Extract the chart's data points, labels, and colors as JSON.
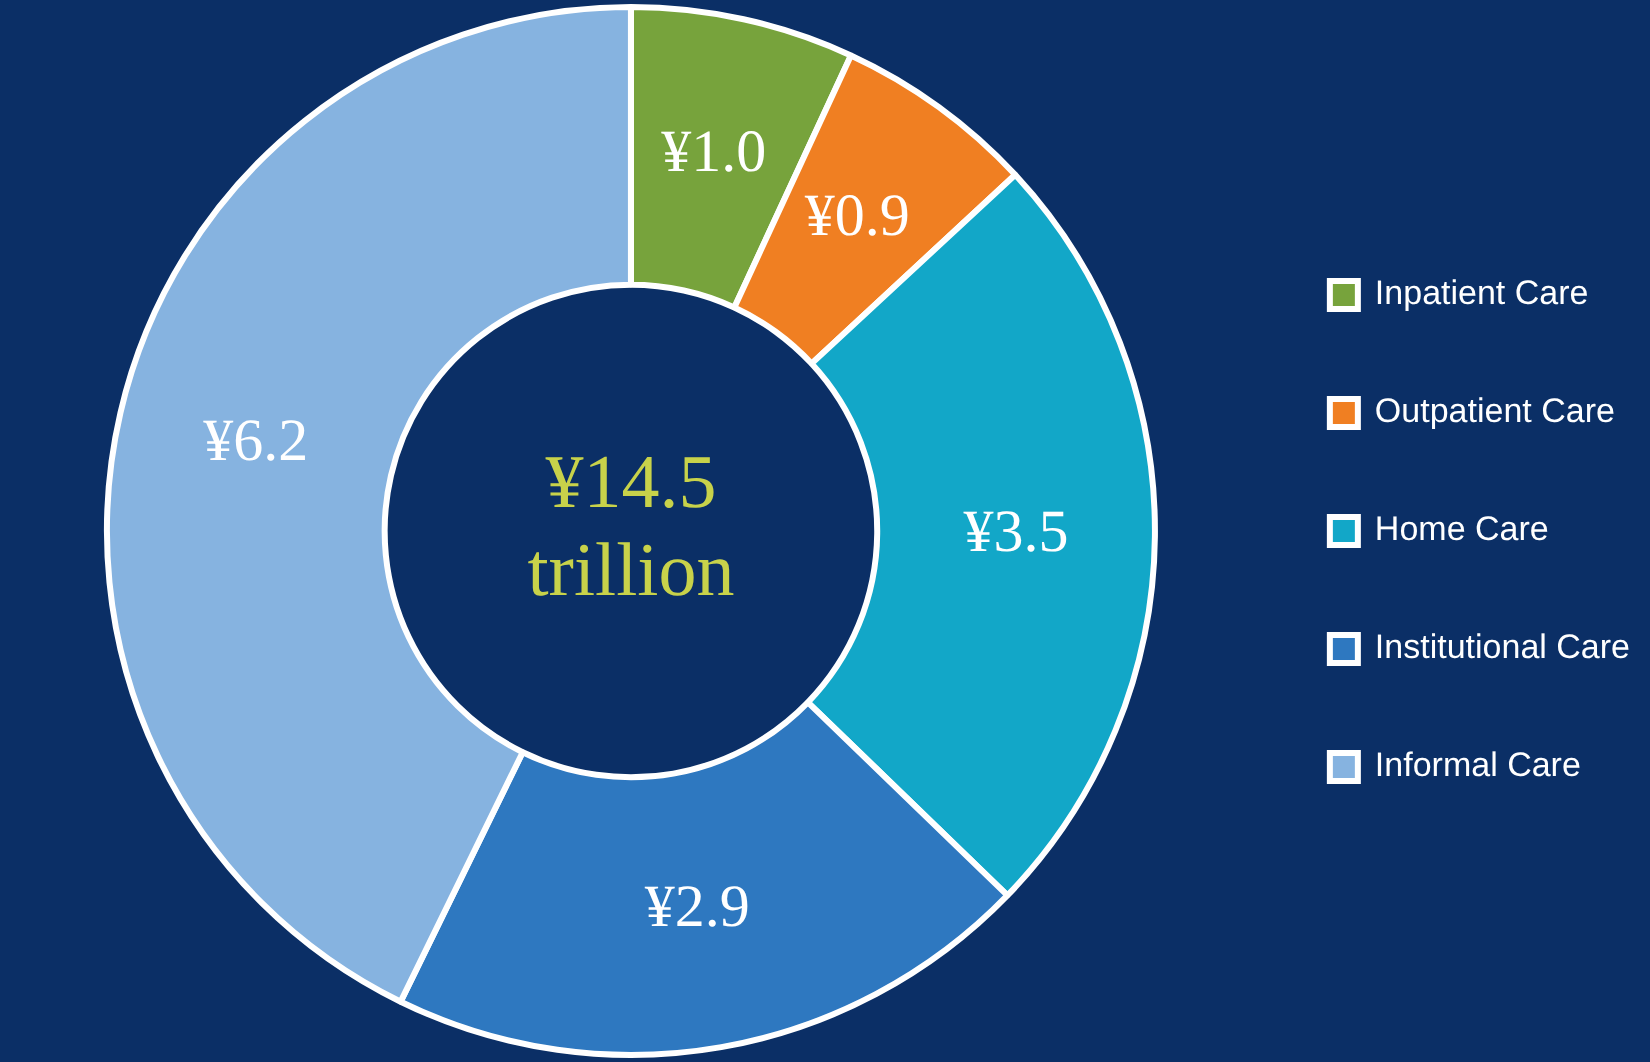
{
  "chart_data": {
    "type": "donut",
    "categories": [
      "Inpatient Care",
      "Outpatient Care",
      "Home Care",
      "Institutional Care",
      "Informal Care"
    ],
    "values": [
      1.0,
      0.9,
      3.5,
      2.9,
      6.2
    ],
    "colors": [
      "#77a33c",
      "#f07f22",
      "#12a7c8",
      "#2e78c0",
      "#86b3e0"
    ],
    "value_labels": [
      "¥1.0",
      "¥0.9",
      "¥3.5",
      "¥2.9",
      "¥6.2"
    ],
    "annotations": [
      "¥14.5 trillion"
    ],
    "legend": "right"
  }
}
